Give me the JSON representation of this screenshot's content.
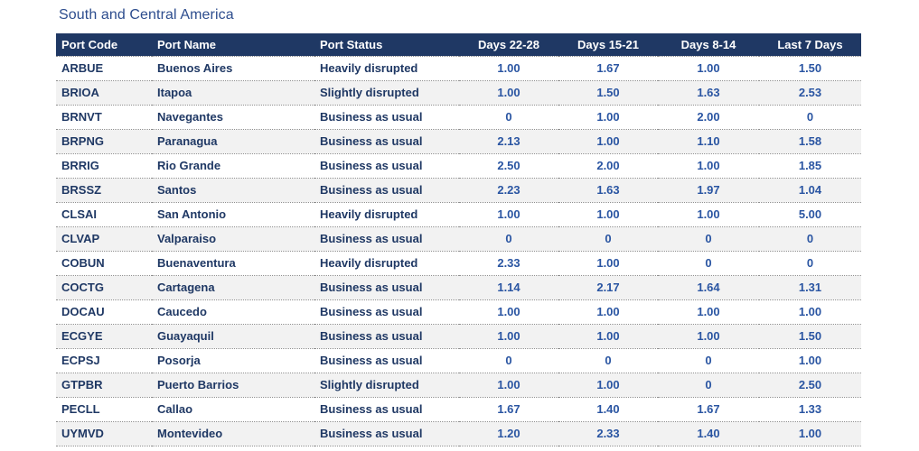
{
  "chart_data": {
    "type": "table",
    "title": "South and Central America",
    "columns": [
      "Port Code",
      "Port Name",
      "Port Status",
      "Days 22-28",
      "Days 15-21",
      "Days 8-14",
      "Last 7 Days"
    ],
    "rows": [
      [
        "ARBUE",
        "Buenos Aires",
        "Heavily disrupted",
        "1.00",
        "1.67",
        "1.00",
        "1.50"
      ],
      [
        "BRIOA",
        "Itapoa",
        "Slightly disrupted",
        "1.00",
        "1.50",
        "1.63",
        "2.53"
      ],
      [
        "BRNVT",
        "Navegantes",
        "Business as usual",
        "0",
        "1.00",
        "2.00",
        "0"
      ],
      [
        "BRPNG",
        "Paranagua",
        "Business as usual",
        "2.13",
        "1.00",
        "1.10",
        "1.58"
      ],
      [
        "BRRIG",
        "Rio Grande",
        "Business as usual",
        "2.50",
        "2.00",
        "1.00",
        "1.85"
      ],
      [
        "BRSSZ",
        "Santos",
        "Business as usual",
        "2.23",
        "1.63",
        "1.97",
        "1.04"
      ],
      [
        "CLSAI",
        "San Antonio",
        "Heavily disrupted",
        "1.00",
        "1.00",
        "1.00",
        "5.00"
      ],
      [
        "CLVAP",
        "Valparaiso",
        "Business as usual",
        "0",
        "0",
        "0",
        "0"
      ],
      [
        "COBUN",
        "Buenaventura",
        "Heavily disrupted",
        "2.33",
        "1.00",
        "0",
        "0"
      ],
      [
        "COCTG",
        "Cartagena",
        "Business as usual",
        "1.14",
        "2.17",
        "1.64",
        "1.31"
      ],
      [
        "DOCAU",
        "Caucedo",
        "Business as usual",
        "1.00",
        "1.00",
        "1.00",
        "1.00"
      ],
      [
        "ECGYE",
        "Guayaquil",
        "Business as usual",
        "1.00",
        "1.00",
        "1.00",
        "1.50"
      ],
      [
        "ECPSJ",
        "Posorja",
        "Business as usual",
        "0",
        "0",
        "0",
        "1.00"
      ],
      [
        "GTPBR",
        "Puerto Barrios",
        "Slightly disrupted",
        "1.00",
        "1.00",
        "0",
        "2.50"
      ],
      [
        "PECLL",
        "Callao",
        "Business as usual",
        "1.67",
        "1.40",
        "1.67",
        "1.33"
      ],
      [
        "UYMVD",
        "Montevideo",
        "Business as usual",
        "1.20",
        "2.33",
        "1.40",
        "1.00"
      ]
    ]
  },
  "colors": {
    "header_bg": "#1f3864",
    "header_text": "#ffffff",
    "title_text": "#2d4d8e",
    "text_navy": "#1f3864",
    "number_blue": "#2a55a2",
    "row_alt_bg": "#f2f2f2",
    "row_border": "#8f8f8f"
  }
}
